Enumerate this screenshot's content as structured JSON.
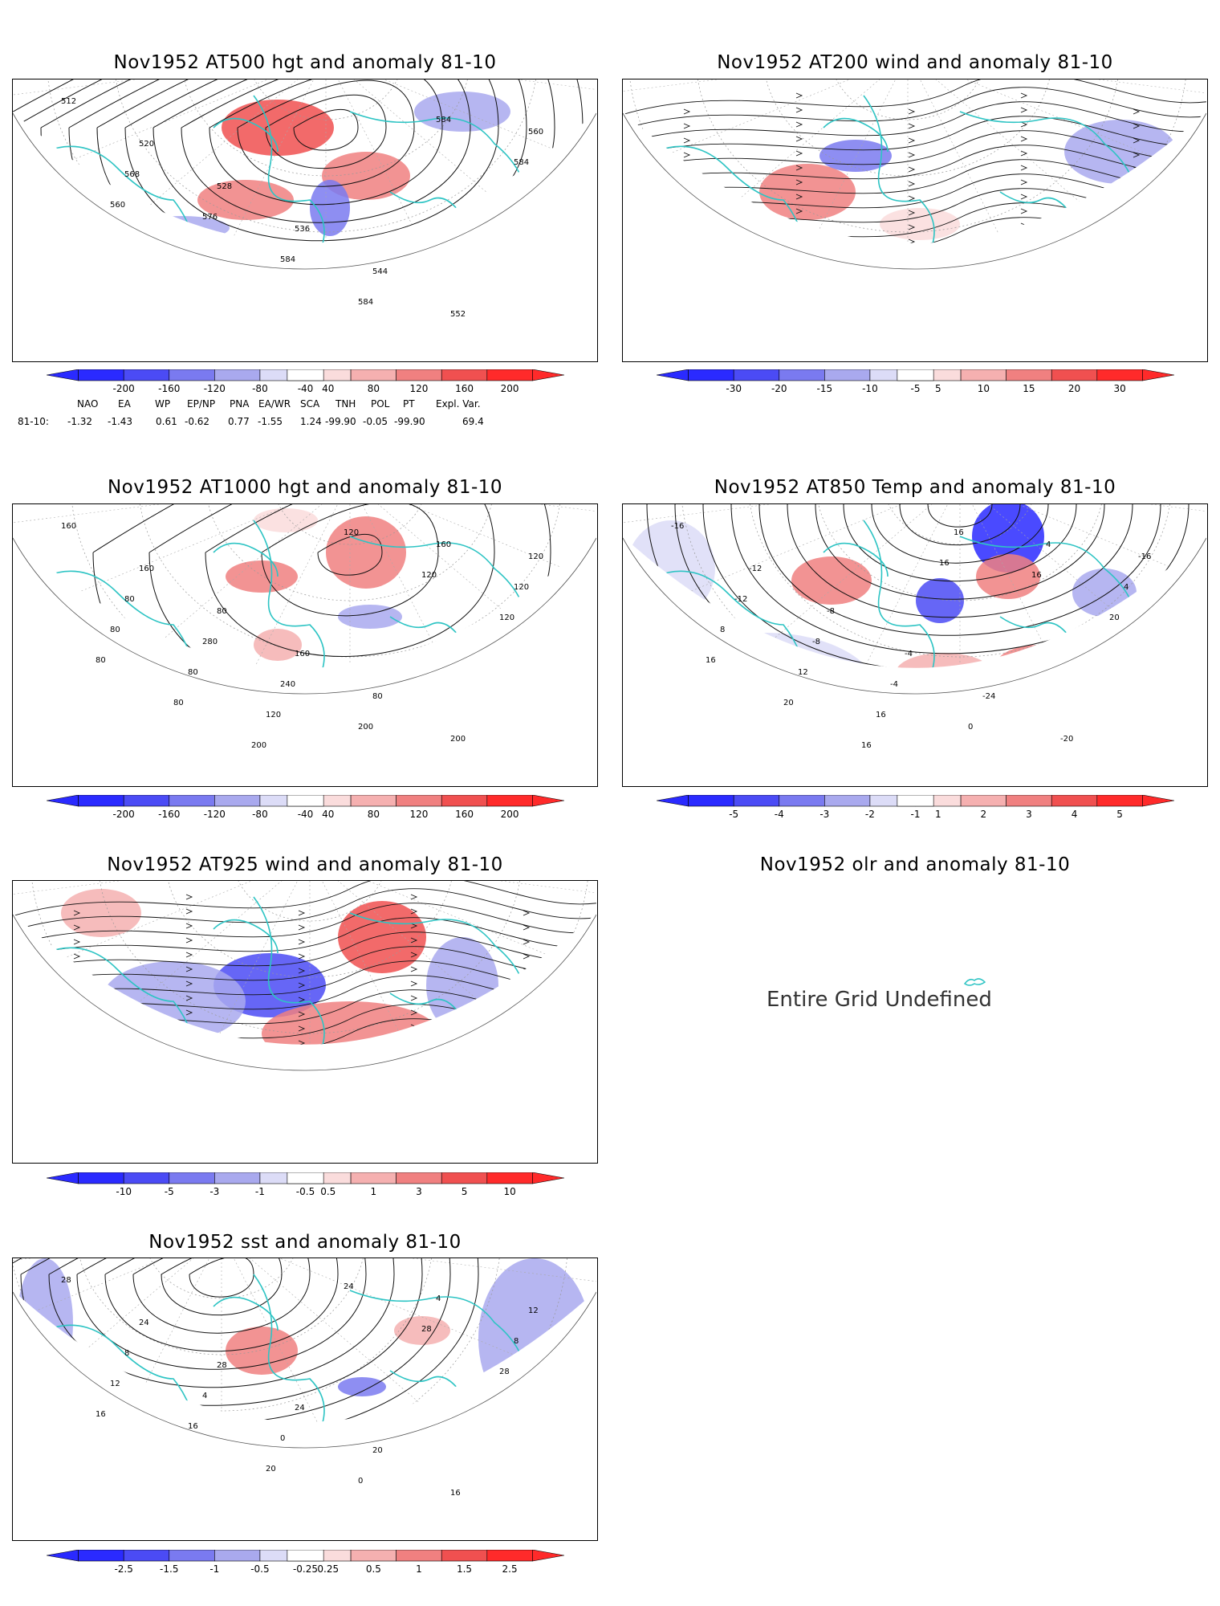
{
  "panels": [
    {
      "id": "p1",
      "title": "Nov1952 AT500 hgt and anomaly 81-10",
      "scheme": "hgt",
      "contour_labels": [
        "512",
        "520",
        "528",
        "536",
        "544",
        "552",
        "560",
        "568",
        "576",
        "584",
        "584",
        "584",
        "584",
        "560"
      ],
      "cbar": [
        "-200",
        "-160",
        "-120",
        "-80",
        "-40",
        "40",
        "80",
        "120",
        "160",
        "200"
      ]
    },
    {
      "id": "p2",
      "title": "Nov1952 AT200 wind and anomaly 81-10",
      "scheme": "wind200",
      "contour_labels": [],
      "cbar": [
        "-30",
        "-20",
        "-15",
        "-10",
        "-5",
        "5",
        "10",
        "15",
        "20",
        "30"
      ]
    },
    {
      "id": "p3",
      "title": "Nov1952 AT1000 hgt and anomaly 81-10",
      "scheme": "hgt",
      "contour_labels": [
        "160",
        "160",
        "80",
        "160",
        "80",
        "200",
        "120",
        "80",
        "280",
        "240",
        "200",
        "160",
        "120",
        "80",
        "80",
        "120",
        "120",
        "120",
        "120",
        "80",
        "80",
        "200"
      ],
      "cbar": [
        "-200",
        "-160",
        "-120",
        "-80",
        "-40",
        "40",
        "80",
        "120",
        "160",
        "200"
      ]
    },
    {
      "id": "p4",
      "title": "Nov1952 AT850 Temp and anomaly 81-10",
      "scheme": "temp",
      "contour_labels": [
        "-16",
        "-12",
        "-8",
        "-4",
        "-24",
        "-20",
        "-16",
        "-12",
        "-8",
        "-4",
        "0",
        "4",
        "4",
        "8",
        "12",
        "16",
        "16",
        "16",
        "20",
        "16",
        "20",
        "16",
        "16"
      ],
      "cbar": [
        "-5",
        "-4",
        "-3",
        "-2",
        "-1",
        "1",
        "2",
        "3",
        "4",
        "5"
      ]
    },
    {
      "id": "p5",
      "title": "Nov1952 AT925 wind and anomaly 81-10",
      "scheme": "wind925",
      "contour_labels": [],
      "cbar": [
        "-10",
        "-5",
        "-3",
        "-1",
        "-0.5",
        "0.5",
        "1",
        "3",
        "5",
        "10"
      ]
    },
    {
      "id": "p6",
      "title": "Nov1952 olr and anomaly 81-10",
      "scheme": "none",
      "undefined_text": "Entire Grid Undefined"
    },
    {
      "id": "p7",
      "title": "Nov1952 sst and anomaly 81-10",
      "scheme": "sst",
      "contour_labels": [
        "28",
        "24",
        "28",
        "24",
        "20",
        "16",
        "12",
        "8",
        "4",
        "0",
        "0",
        "4",
        "8",
        "12",
        "16",
        "20",
        "24",
        "28",
        "28",
        "16"
      ],
      "cbar": [
        "-2.5",
        "-1.5",
        "-1",
        "-0.5",
        "-0.25",
        "0.25",
        "0.5",
        "1",
        "1.5",
        "2.5"
      ]
    }
  ],
  "teleconnections": {
    "headers": [
      "NAO",
      "EA",
      "WP",
      "EP/NP",
      "PNA",
      "EA/WR",
      "SCA",
      "TNH",
      "POL",
      "PT",
      "Expl. Var."
    ],
    "row_label": "81-10:",
    "values": [
      "-1.32",
      "-1.43",
      "0.61",
      "-0.62",
      "0.77",
      "-1.55",
      "1.24",
      "-99.90",
      "-0.05",
      "-99.90",
      "69.4"
    ]
  },
  "colors": {
    "blue5": "#2a2aff",
    "blue4": "#4b4bf5",
    "blue3": "#7a7af0",
    "blue2": "#a9a9ee",
    "blue1": "#dcdcf7",
    "red1": "#fadcdc",
    "red2": "#f5b0b0",
    "red3": "#f08080",
    "red4": "#f05050",
    "red5": "#ff2a2a",
    "coast": "#2ec4c4"
  }
}
